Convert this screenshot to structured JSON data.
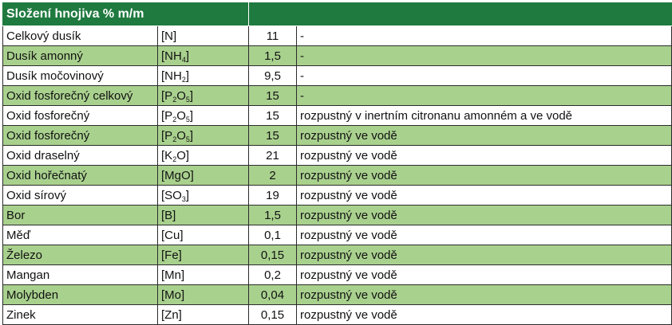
{
  "title": "Složení hnojiva % m/m",
  "rows": [
    {
      "name": "Celkový dusík",
      "formula": [
        {
          "t": "[N]"
        }
      ],
      "value": "11",
      "note": "-"
    },
    {
      "name": "Dusík amonný",
      "formula": [
        {
          "t": "[NH"
        },
        {
          "s": "4"
        },
        {
          "t": "]"
        }
      ],
      "value": "1,5",
      "note": "-"
    },
    {
      "name": "Dusík močovinový",
      "formula": [
        {
          "t": "[NH"
        },
        {
          "s": "2"
        },
        {
          "t": "]"
        }
      ],
      "value": "9,5",
      "note": "-"
    },
    {
      "name": "Oxid fosforečný celkový",
      "formula": [
        {
          "t": "[P"
        },
        {
          "s": "2"
        },
        {
          "t": "O"
        },
        {
          "s": "5"
        },
        {
          "t": "]"
        }
      ],
      "value": "15",
      "note": "-"
    },
    {
      "name": "Oxid fosforečný",
      "formula": [
        {
          "t": "[P"
        },
        {
          "s": "2"
        },
        {
          "t": "O"
        },
        {
          "s": "5"
        },
        {
          "t": "]"
        }
      ],
      "value": "15",
      "note": "rozpustný v inertním citronanu amonném a ve vodě"
    },
    {
      "name": "Oxid fosforečný",
      "formula": [
        {
          "t": "[P"
        },
        {
          "s": "2"
        },
        {
          "t": "O"
        },
        {
          "s": "5"
        },
        {
          "t": "]"
        }
      ],
      "value": "15",
      "note": "rozpustný ve vodě"
    },
    {
      "name": "Oxid draselný",
      "formula": [
        {
          "t": "[K"
        },
        {
          "s": "2"
        },
        {
          "t": "O]"
        }
      ],
      "value": "21",
      "note": "rozpustný ve vodě"
    },
    {
      "name": "Oxid hořečnatý",
      "formula": [
        {
          "t": "[MgO]"
        }
      ],
      "value": "2",
      "note": "rozpustný ve vodě"
    },
    {
      "name": "Oxid sírový",
      "formula": [
        {
          "t": "[SO"
        },
        {
          "s": "3"
        },
        {
          "t": "]"
        }
      ],
      "value": "19",
      "note": "rozpustný ve vodě"
    },
    {
      "name": "Bor",
      "formula": [
        {
          "t": "[B]"
        }
      ],
      "value": "1,5",
      "note": "rozpustný ve vodě"
    },
    {
      "name": "Měď",
      "formula": [
        {
          "t": "[Cu]"
        }
      ],
      "value": "0,1",
      "note": "rozpustný ve vodě"
    },
    {
      "name": "Železo",
      "formula": [
        {
          "t": "[Fe]"
        }
      ],
      "value": "0,15",
      "note": "rozpustný ve vodě"
    },
    {
      "name": "Mangan",
      "formula": [
        {
          "t": "[Mn]"
        }
      ],
      "value": "0,2",
      "note": "rozpustný ve vodě"
    },
    {
      "name": "Molybden",
      "formula": [
        {
          "t": "[Mo]"
        }
      ],
      "value": "0,04",
      "note": "rozpustný ve vodě"
    },
    {
      "name": "Zinek",
      "formula": [
        {
          "t": "[Zn]"
        }
      ],
      "value": "0,15",
      "note": "rozpustný ve vodě"
    }
  ],
  "colors": {
    "header": "#1f7a3f",
    "stripe": "#a9d18e",
    "white": "#ffffff"
  }
}
